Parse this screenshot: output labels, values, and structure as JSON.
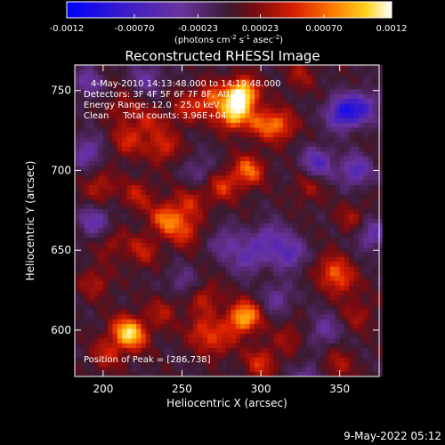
{
  "chart_data": {
    "type": "heatmap",
    "title": "Reconstructed RHESSI Image",
    "xlabel": "Heliocentric X (arcsec)",
    "ylabel": "Heliocentric Y (arcsec)",
    "xlim": [
      182,
      375
    ],
    "ylim": [
      571,
      766
    ],
    "x_ticks": [
      200,
      250,
      300,
      350
    ],
    "y_ticks": [
      600,
      650,
      700,
      750
    ],
    "colorbar": {
      "range": [
        -0.0012,
        0.0012
      ],
      "ticks": [
        "-0.0012",
        "-0.00070",
        "-0.00023",
        "0.00023",
        "0.00070",
        "0.0012"
      ],
      "label_main": "(photons cm",
      "label_exp1": "-2",
      "label_mid1": " s",
      "label_exp2": "-1",
      "label_mid2": " asec",
      "label_exp3": "-2",
      "label_end": ")"
    },
    "annotations": [
      "4-May-2010 14:13:48.000 to 14:19:48.000",
      "Detectors: 3F 4F 5F 6F 7F 8F, Att 0",
      "Energy Range: 12.0 - 25.0 keV",
      "Clean     Total counts: 3.96E+04"
    ],
    "peak_text": "Position of Peak = [286,738]",
    "peak": [
      286,
      738
    ],
    "hotspots": [
      {
        "x": 288,
        "y": 748,
        "v": 0.0012
      },
      {
        "x": 282,
        "y": 735,
        "v": 0.0009
      },
      {
        "x": 268,
        "y": 745,
        "v": 0.0006
      },
      {
        "x": 228,
        "y": 730,
        "v": 0.0004
      },
      {
        "x": 238,
        "y": 715,
        "v": 0.0005
      },
      {
        "x": 215,
        "y": 718,
        "v": 0.00045
      },
      {
        "x": 300,
        "y": 730,
        "v": 0.0005
      },
      {
        "x": 312,
        "y": 728,
        "v": 0.0006
      },
      {
        "x": 292,
        "y": 700,
        "v": 0.0007
      },
      {
        "x": 275,
        "y": 690,
        "v": 0.0005
      },
      {
        "x": 255,
        "y": 680,
        "v": 0.0004
      },
      {
        "x": 240,
        "y": 670,
        "v": 0.0007
      },
      {
        "x": 252,
        "y": 662,
        "v": 0.0005
      },
      {
        "x": 222,
        "y": 685,
        "v": 0.0004
      },
      {
        "x": 198,
        "y": 690,
        "v": 0.0004
      },
      {
        "x": 205,
        "y": 655,
        "v": 0.0003
      },
      {
        "x": 225,
        "y": 650,
        "v": 0.0004
      },
      {
        "x": 195,
        "y": 630,
        "v": 0.00035
      },
      {
        "x": 213,
        "y": 600,
        "v": 0.0005
      },
      {
        "x": 219,
        "y": 597,
        "v": 0.0007
      },
      {
        "x": 202,
        "y": 585,
        "v": 0.0004
      },
      {
        "x": 238,
        "y": 612,
        "v": 0.00035
      },
      {
        "x": 262,
        "y": 600,
        "v": 0.00045
      },
      {
        "x": 285,
        "y": 605,
        "v": 0.0005
      },
      {
        "x": 292,
        "y": 610,
        "v": 0.0006
      },
      {
        "x": 265,
        "y": 620,
        "v": 0.0004
      },
      {
        "x": 272,
        "y": 592,
        "v": 0.0004
      },
      {
        "x": 300,
        "y": 580,
        "v": 0.0005
      },
      {
        "x": 318,
        "y": 596,
        "v": 0.0003
      },
      {
        "x": 345,
        "y": 638,
        "v": 0.0005
      },
      {
        "x": 352,
        "y": 630,
        "v": 0.0004
      },
      {
        "x": 362,
        "y": 610,
        "v": 0.0003
      },
      {
        "x": 348,
        "y": 578,
        "v": 0.00035
      },
      {
        "x": 330,
        "y": 690,
        "v": 0.0003
      },
      {
        "x": 358,
        "y": 670,
        "v": 0.0003
      },
      {
        "x": 212,
        "y": 740,
        "v": 0.0003
      },
      {
        "x": 252,
        "y": 738,
        "v": 0.0004
      },
      {
        "x": 325,
        "y": 760,
        "v": 0.0003
      }
    ],
    "coldspots": [
      {
        "x": 352,
        "y": 736,
        "v": -0.0009
      },
      {
        "x": 336,
        "y": 705,
        "v": -0.0006
      },
      {
        "x": 360,
        "y": 700,
        "v": -0.0006
      },
      {
        "x": 365,
        "y": 740,
        "v": -0.0006
      },
      {
        "x": 318,
        "y": 648,
        "v": -0.0006
      },
      {
        "x": 305,
        "y": 658,
        "v": -0.0005
      },
      {
        "x": 190,
        "y": 712,
        "v": -0.0005
      },
      {
        "x": 195,
        "y": 668,
        "v": -0.0005
      },
      {
        "x": 190,
        "y": 755,
        "v": -0.0004
      },
      {
        "x": 278,
        "y": 655,
        "v": -0.0004
      },
      {
        "x": 292,
        "y": 645,
        "v": -0.0005
      },
      {
        "x": 340,
        "y": 600,
        "v": -0.0004
      },
      {
        "x": 330,
        "y": 570,
        "v": -0.0004
      },
      {
        "x": 250,
        "y": 630,
        "v": -0.0003
      },
      {
        "x": 228,
        "y": 758,
        "v": -0.0004
      },
      {
        "x": 310,
        "y": 620,
        "v": -0.0004
      },
      {
        "x": 370,
        "y": 660,
        "v": -0.0005
      },
      {
        "x": 262,
        "y": 700,
        "v": -0.0003
      }
    ]
  },
  "footer": {
    "date": "9-May-2022 05:12"
  }
}
